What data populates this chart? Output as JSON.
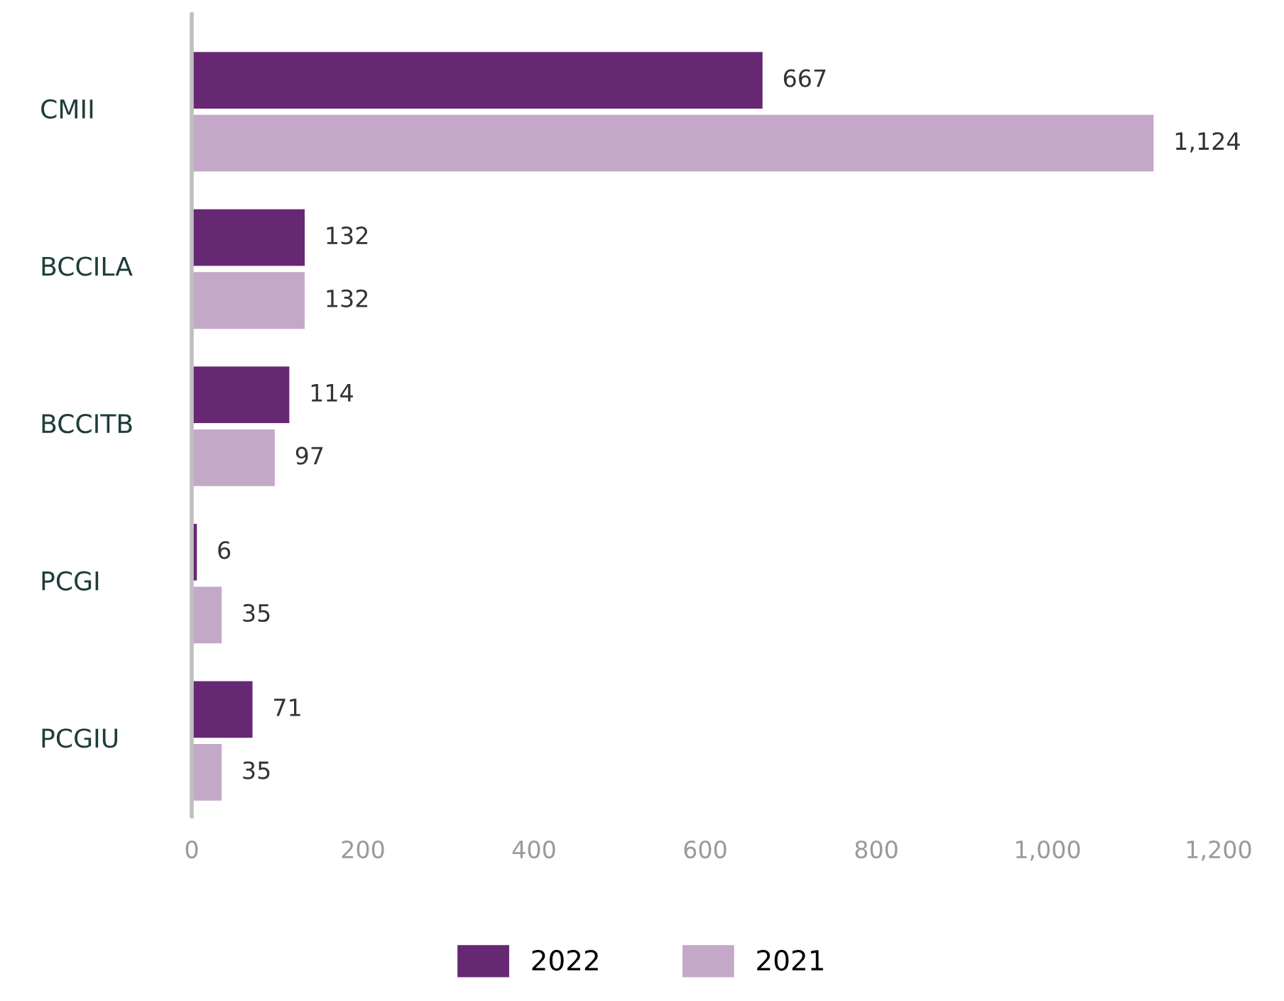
{
  "chart_data": {
    "type": "bar",
    "orientation": "horizontal",
    "categories": [
      "CMII",
      "BCCILA",
      "BCCITB",
      "PCGI",
      "PCGIU"
    ],
    "series": [
      {
        "name": "2022",
        "color": "#662873",
        "values": [
          667,
          132,
          114,
          6,
          71
        ]
      },
      {
        "name": "2021",
        "color": "#c3a8c8",
        "values": [
          1124,
          132,
          97,
          35,
          35
        ]
      }
    ],
    "xlim": [
      0,
      1200
    ],
    "xticks": [
      0,
      {
        "value": 200,
        "label": "200"
      },
      {
        "value": 400,
        "label": "400"
      },
      {
        "value": 600,
        "label": "600"
      },
      {
        "value": 800,
        "label": "800"
      },
      {
        "value": 1000,
        "label": "1,000"
      },
      {
        "value": 1200,
        "label": "1,200"
      }
    ],
    "value_labels": [
      [
        "667",
        "132",
        "114",
        "6",
        "71"
      ],
      [
        "1,124",
        "132",
        "97",
        "35",
        "35"
      ]
    ],
    "grid": false,
    "legend": "bottom"
  }
}
